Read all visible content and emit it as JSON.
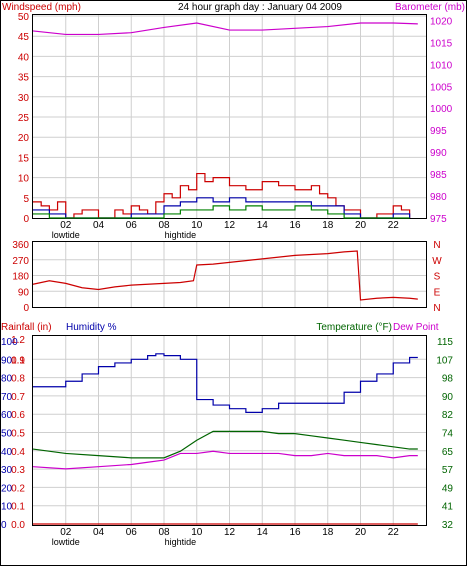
{
  "colors": {
    "frame": "#000000",
    "grid": "#cfcfcf",
    "wind": "#cc0000",
    "wind_avg": "#0000aa",
    "wind_green": "#008000",
    "barometer": "#cc00cc",
    "direction": "#cc0000",
    "humidity": "#0000aa",
    "temperature": "#006400",
    "dewpoint": "#cc00cc",
    "rain": "#cc0000"
  },
  "chart_data": [
    {
      "type": "line",
      "title": "24 hour graph day : January 04 2009",
      "ylabel_left": "Windspeed (mph)",
      "ylabel_right": "Barometer (mb)",
      "x_ticks": [
        "02",
        "04",
        "06",
        "08",
        "10",
        "12",
        "14",
        "16",
        "18",
        "20",
        "22"
      ],
      "x_annotations": [
        {
          "label": "lowtide",
          "x": 2
        },
        {
          "label": "hightide",
          "x": 9
        }
      ],
      "yleft_ticks": [
        0,
        5,
        10,
        15,
        20,
        25,
        30,
        35,
        40,
        45,
        50
      ],
      "ylim_left": [
        0,
        50
      ],
      "yright_ticks": [
        975,
        980,
        985,
        990,
        995,
        1000,
        1005,
        1010,
        1015,
        1020
      ],
      "ylim_right": [
        975,
        1021
      ],
      "series": [
        {
          "name": "Barometer",
          "axis": "right",
          "x": [
            0,
            2,
            4,
            6,
            8,
            10,
            12,
            14,
            16,
            18,
            20,
            22,
            23.5
          ],
          "values": [
            1017.6,
            1016.8,
            1016.8,
            1017.2,
            1018.4,
            1019.4,
            1017.8,
            1017.8,
            1018.2,
            1018.6,
            1019.4,
            1019.4,
            1019.2
          ]
        },
        {
          "name": "Wind gust",
          "axis": "left",
          "x": [
            0,
            0.5,
            1,
            1.5,
            2,
            2.5,
            3,
            4,
            5,
            5.5,
            6,
            6.5,
            7,
            7.5,
            8,
            8.5,
            9,
            9.5,
            10,
            10.5,
            11,
            12,
            13,
            14,
            15,
            16,
            17,
            17.5,
            18,
            18.5,
            19,
            20,
            21,
            22,
            22.5,
            23
          ],
          "values": [
            4,
            3,
            2,
            4,
            0,
            1,
            2,
            0,
            2,
            1,
            3,
            2,
            1,
            4,
            6,
            5,
            8,
            7,
            11,
            9,
            10,
            8,
            7,
            9,
            8,
            7,
            8,
            6,
            5,
            3,
            2,
            0,
            1,
            3,
            2,
            0
          ]
        },
        {
          "name": "Wind average",
          "axis": "left",
          "x": [
            0,
            1,
            2,
            4,
            6,
            7,
            8,
            9,
            10,
            11,
            12,
            13,
            14,
            15,
            16,
            17,
            18,
            19,
            20,
            22,
            23
          ],
          "values": [
            2,
            1,
            0,
            0,
            1,
            1,
            3,
            4,
            5,
            4,
            5,
            4,
            4,
            4,
            4,
            3,
            3,
            1,
            0,
            1,
            0
          ]
        },
        {
          "name": "Wind speed",
          "axis": "left",
          "x": [
            0,
            1,
            2,
            4,
            6,
            7,
            8,
            9,
            10,
            11,
            12,
            13,
            14,
            15,
            16,
            17,
            18,
            19,
            20,
            22,
            23
          ],
          "values": [
            1,
            0,
            0,
            0,
            0,
            0,
            1,
            2,
            2,
            3,
            2,
            3,
            2,
            2,
            3,
            2,
            1,
            0,
            0,
            0,
            0
          ]
        }
      ]
    },
    {
      "type": "line",
      "title": "",
      "yleft_ticks": [
        0,
        90,
        180,
        270,
        360
      ],
      "ylim_left": [
        0,
        360
      ],
      "yright_ticks": [
        "N",
        "W",
        "S",
        "E",
        "N"
      ],
      "series": [
        {
          "name": "Wind direction",
          "x": [
            0,
            1,
            2,
            3,
            4,
            5,
            6,
            7,
            8,
            9,
            9.8,
            10,
            11,
            12,
            13,
            14,
            15,
            16,
            17,
            18,
            19,
            19.8,
            20,
            21,
            22,
            23,
            23.5
          ],
          "values": [
            130,
            150,
            135,
            110,
            100,
            115,
            125,
            130,
            135,
            140,
            150,
            240,
            245,
            255,
            265,
            275,
            285,
            295,
            300,
            305,
            315,
            320,
            40,
            50,
            55,
            50,
            45
          ]
        }
      ]
    },
    {
      "type": "line",
      "title": "",
      "labels_top": {
        "rainfall": "Rainfall (in)",
        "humidity": "Humidity %",
        "temperature": "Temperature (°F)",
        "dewpoint": "Dew Point"
      },
      "rain_ticks": [
        "0.0",
        "0.1",
        "0.2",
        "0.3",
        "0.4",
        "0.5",
        "0.6",
        "0.7",
        "0.8",
        "0.9",
        "1.1",
        "1.2"
      ],
      "humidity_ticks": [
        "0",
        "10",
        "20",
        "30",
        "40",
        "50",
        "60",
        "70",
        "80",
        "90",
        "100"
      ],
      "temp_ticks": [
        "32",
        "41",
        "49",
        "57",
        "65",
        "74",
        "82",
        "90",
        "98",
        "107",
        "115"
      ],
      "x_ticks": [
        "02",
        "04",
        "06",
        "08",
        "10",
        "12",
        "14",
        "16",
        "18",
        "20",
        "22"
      ],
      "x_annotations": [
        {
          "label": "lowtide",
          "x": 2
        },
        {
          "label": "hightide",
          "x": 9
        }
      ],
      "series": [
        {
          "name": "Humidity",
          "axis": "humidity",
          "ylim": [
            0,
            100
          ],
          "x": [
            0,
            2,
            3,
            4,
            4.5,
            5,
            6,
            7,
            7.5,
            8,
            9,
            10,
            11,
            12,
            13,
            14,
            15,
            16,
            17,
            18,
            19,
            20,
            21,
            22,
            23,
            23.5
          ],
          "values": [
            75,
            78,
            82,
            86,
            86,
            88,
            90,
            92,
            93,
            92,
            90,
            68,
            65,
            63,
            61,
            63,
            66,
            66,
            66,
            66,
            72,
            78,
            82,
            88,
            91,
            91
          ]
        },
        {
          "name": "Temperature",
          "axis": "temp",
          "ylim": [
            32,
            115
          ],
          "x": [
            0,
            2,
            4,
            6,
            8,
            9,
            10,
            11,
            12,
            13,
            14,
            15,
            16,
            17,
            18,
            19,
            20,
            21,
            22,
            23,
            23.5
          ],
          "values": [
            66,
            64,
            63,
            62,
            62,
            65,
            70,
            74,
            74,
            74,
            74,
            73,
            73,
            72,
            71,
            70,
            69,
            68,
            67,
            66,
            66
          ]
        },
        {
          "name": "Dew Point",
          "axis": "temp",
          "ylim": [
            32,
            115
          ],
          "x": [
            0,
            2,
            4,
            6,
            7,
            8,
            9,
            10,
            11,
            12,
            13,
            14,
            15,
            16,
            17,
            18,
            19,
            20,
            21,
            22,
            23,
            23.5
          ],
          "values": [
            58,
            57,
            58,
            59,
            60,
            61,
            64,
            64,
            65,
            64,
            64,
            64,
            64,
            63,
            63,
            64,
            63,
            63,
            63,
            62,
            63,
            63
          ]
        },
        {
          "name": "Rainfall",
          "axis": "rain",
          "ylim": [
            0,
            1.2
          ],
          "x": [
            0,
            23.5
          ],
          "values": [
            0,
            0
          ]
        }
      ]
    }
  ]
}
